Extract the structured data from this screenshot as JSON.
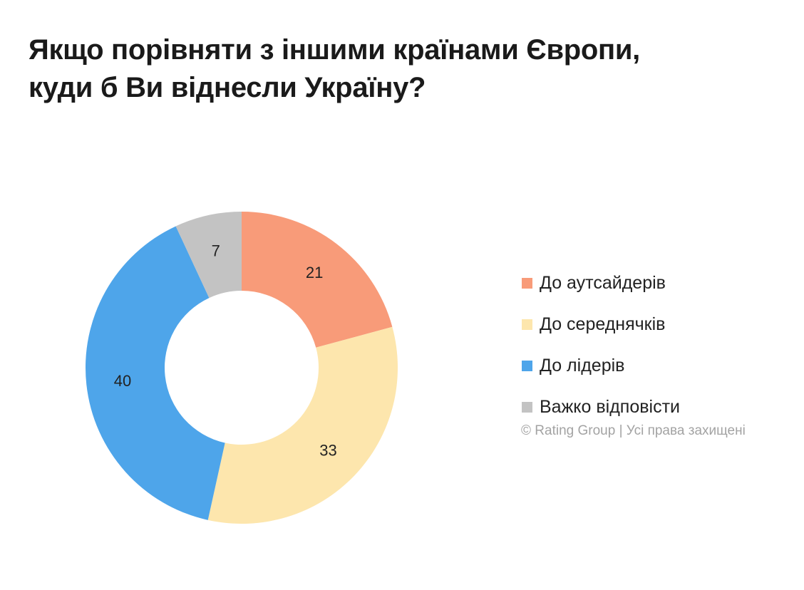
{
  "chart_data": {
    "type": "pie",
    "title": [
      "Якщо порівняти з іншими країнами Європи,",
      "куди б Ви віднесли Україну?"
    ],
    "categories": [
      "До аутсайдерів",
      "До середнячків",
      "До лідерів",
      "Важко відповісти"
    ],
    "values": [
      21,
      33,
      40,
      7
    ],
    "colors": [
      "#f89b79",
      "#fde6ad",
      "#4ea5ea",
      "#c3c3c3"
    ],
    "donut": true,
    "legend_position": "right"
  },
  "credit": "© Rating Group | Усі права захищені"
}
